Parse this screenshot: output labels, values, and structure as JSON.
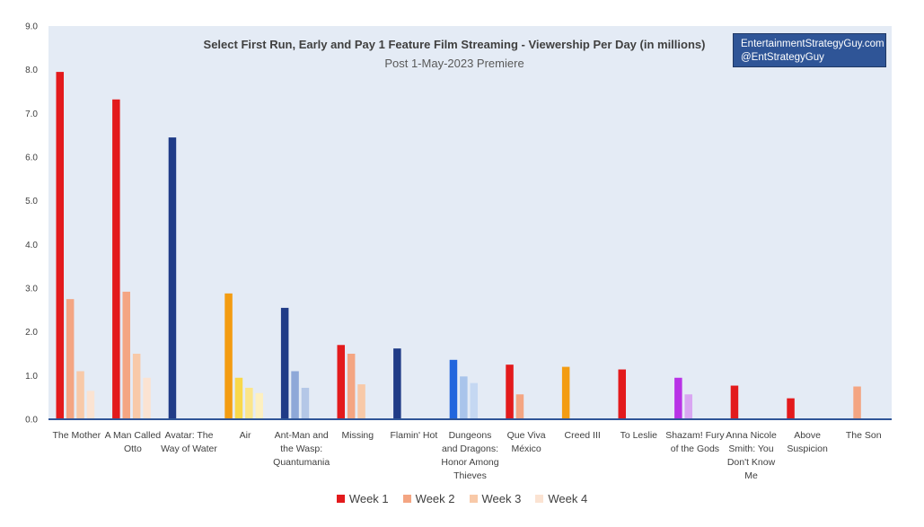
{
  "brand": {
    "line1": "EntertainmentStrategyGuy.com",
    "line2": "@EntStrategyGuy"
  },
  "chart_data": {
    "type": "bar",
    "title": "Select First Run, Early and Pay 1 Feature Film Streaming - Viewership Per Day (in millions)",
    "subtitle": "Post 1-May-2023 Premiere",
    "xlabel": "",
    "ylabel": "",
    "ylim": [
      0,
      9
    ],
    "yticks": [
      "0.0",
      "1.0",
      "2.0",
      "3.0",
      "4.0",
      "5.0",
      "6.0",
      "7.0",
      "8.0",
      "9.0"
    ],
    "legend_position": "bottom",
    "series": [
      {
        "name": "Week 1",
        "legend_color": "#e31a1c"
      },
      {
        "name": "Week 2",
        "legend_color": "#f4a582"
      },
      {
        "name": "Week 3",
        "legend_color": "#f8c9a8"
      },
      {
        "name": "Week 4",
        "legend_color": "#fbe3d2"
      }
    ],
    "categories": [
      {
        "label": [
          "The Mother"
        ],
        "bars": [
          {
            "week": 1,
            "value": 7.95,
            "color": "#e31a1c"
          },
          {
            "week": 2,
            "value": 2.75,
            "color": "#f4a582"
          },
          {
            "week": 3,
            "value": 1.1,
            "color": "#f8c9a8"
          },
          {
            "week": 4,
            "value": 0.65,
            "color": "#fbe3d2"
          }
        ]
      },
      {
        "label": [
          "A Man Called",
          "Otto"
        ],
        "bars": [
          {
            "week": 1,
            "value": 7.32,
            "color": "#e31a1c"
          },
          {
            "week": 2,
            "value": 2.92,
            "color": "#f4a582"
          },
          {
            "week": 3,
            "value": 1.5,
            "color": "#f8c9a8"
          },
          {
            "week": 4,
            "value": 0.95,
            "color": "#fbe3d2"
          }
        ]
      },
      {
        "label": [
          "Avatar: The",
          "Way of Water"
        ],
        "bars": [
          {
            "week": 1,
            "value": 6.45,
            "color": "#1f3b87"
          }
        ]
      },
      {
        "label": [
          "Air"
        ],
        "bars": [
          {
            "week": 1,
            "value": 2.88,
            "color": "#f39c12"
          },
          {
            "week": 2,
            "value": 0.95,
            "color": "#f9d84a"
          },
          {
            "week": 3,
            "value": 0.72,
            "color": "#fbe58a"
          },
          {
            "week": 4,
            "value": 0.6,
            "color": "#fdf0c0"
          }
        ]
      },
      {
        "label": [
          "Ant-Man and",
          "the Wasp:",
          "Quantumania"
        ],
        "bars": [
          {
            "week": 1,
            "value": 2.55,
            "color": "#1f3b87"
          },
          {
            "week": 2,
            "value": 1.1,
            "color": "#8ea8d8"
          },
          {
            "week": 3,
            "value": 0.72,
            "color": "#b4c7e7"
          }
        ]
      },
      {
        "label": [
          "Missing"
        ],
        "bars": [
          {
            "week": 1,
            "value": 1.7,
            "color": "#e31a1c"
          },
          {
            "week": 2,
            "value": 1.5,
            "color": "#f4a582"
          },
          {
            "week": 3,
            "value": 0.8,
            "color": "#f8c9a8"
          }
        ]
      },
      {
        "label": [
          "Flamin' Hot"
        ],
        "bars": [
          {
            "week": 1,
            "value": 1.62,
            "color": "#1f3b87"
          }
        ]
      },
      {
        "label": [
          "Dungeons",
          "and Dragons:",
          "Honor Among",
          "Thieves"
        ],
        "bars": [
          {
            "week": 1,
            "value": 1.36,
            "color": "#2266dd"
          },
          {
            "week": 2,
            "value": 0.98,
            "color": "#a9c4eb"
          },
          {
            "week": 3,
            "value": 0.83,
            "color": "#c5d8f2"
          }
        ]
      },
      {
        "label": [
          "Que Viva",
          "México"
        ],
        "bars": [
          {
            "week": 1,
            "value": 1.25,
            "color": "#e31a1c"
          },
          {
            "week": 2,
            "value": 0.57,
            "color": "#f4a582"
          }
        ]
      },
      {
        "label": [
          "Creed III"
        ],
        "bars": [
          {
            "week": 1,
            "value": 1.2,
            "color": "#f39c12"
          }
        ]
      },
      {
        "label": [
          "To Leslie"
        ],
        "bars": [
          {
            "week": 1,
            "value": 1.14,
            "color": "#e31a1c"
          }
        ]
      },
      {
        "label": [
          "Shazam! Fury",
          "of the Gods"
        ],
        "bars": [
          {
            "week": 1,
            "value": 0.95,
            "color": "#b833e6"
          },
          {
            "week": 2,
            "value": 0.57,
            "color": "#d9a6f2"
          }
        ]
      },
      {
        "label": [
          "Anna Nicole",
          "Smith: You",
          "Don't Know",
          "Me"
        ],
        "bars": [
          {
            "week": 1,
            "value": 0.77,
            "color": "#e31a1c"
          }
        ]
      },
      {
        "label": [
          "Above",
          "Suspicion"
        ],
        "bars": [
          {
            "week": 1,
            "value": 0.48,
            "color": "#e31a1c"
          }
        ]
      },
      {
        "label": [
          "The Son"
        ],
        "bars": [
          {
            "week": 2,
            "value": 0.75,
            "color": "#f4a582"
          }
        ]
      }
    ]
  }
}
